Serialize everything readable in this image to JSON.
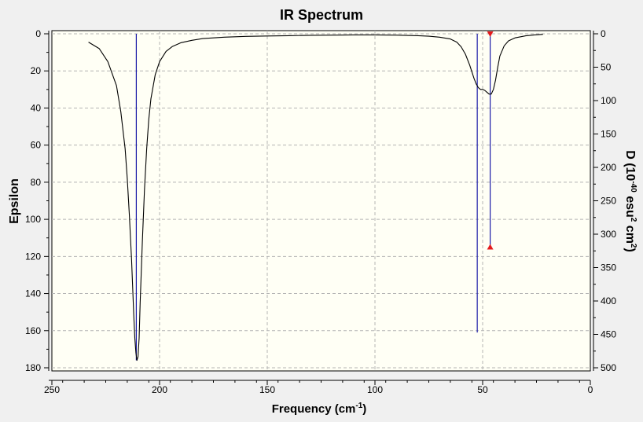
{
  "chart_data": {
    "type": "line",
    "title": "IR Spectrum",
    "xlabel": "Frequency (cm",
    "xlabel_sup": "-1",
    "xlabel_tail": ")",
    "ylabel": "Epsilon",
    "y2label": {
      "parts": [
        {
          "text": "D (10",
          "sup": false
        },
        {
          "text": "-40",
          "sup": true
        },
        {
          "text": " esu",
          "sup": false
        },
        {
          "text": "2",
          "sup": true
        },
        {
          "text": " cm",
          "sup": false
        },
        {
          "text": "2",
          "sup": true
        },
        {
          "text": ")",
          "sup": false
        }
      ]
    },
    "xlim": [
      250,
      0
    ],
    "ylim": [
      0,
      180
    ],
    "y2lim": [
      0,
      500
    ],
    "x_ticks": [
      250,
      200,
      150,
      100,
      50,
      0
    ],
    "x_tick_labels": [
      "250",
      "200",
      "150",
      "100",
      "50",
      "0"
    ],
    "y_ticks": [
      0,
      20,
      40,
      60,
      80,
      100,
      120,
      140,
      160,
      180
    ],
    "y_tick_labels": [
      "0",
      "20",
      "40",
      "60",
      "80",
      "100",
      "120",
      "140",
      "160",
      "180"
    ],
    "y2_ticks": [
      0,
      50,
      100,
      150,
      200,
      250,
      300,
      350,
      400,
      450,
      500
    ],
    "y2_tick_labels": [
      "0",
      "50",
      "100",
      "150",
      "200",
      "250",
      "300",
      "350",
      "400",
      "450",
      "500"
    ],
    "grid": true,
    "plot_background": "#fffff5",
    "spectrum_color": "#000000",
    "stick_color": "#1c1ca8",
    "marker_color": "#e41a1c",
    "spectrum": {
      "x": [
        233,
        228,
        224,
        220,
        218,
        216,
        215,
        214,
        213,
        212.5,
        212,
        211.5,
        211,
        210.5,
        210,
        209.5,
        209,
        208,
        207,
        206,
        205,
        204,
        202,
        200,
        197,
        194,
        190,
        185,
        180,
        170,
        160,
        150,
        140,
        130,
        120,
        110,
        100,
        90,
        80,
        75,
        70,
        65,
        62,
        60,
        58,
        56,
        54,
        53,
        52,
        51,
        50,
        49,
        48,
        47,
        46,
        45,
        44,
        43,
        42,
        40,
        38,
        35,
        30,
        26,
        22
      ],
      "y": [
        4.5,
        8,
        15,
        28,
        42,
        62,
        78,
        98,
        122,
        137,
        151,
        164,
        172,
        176,
        174,
        164,
        145,
        112,
        84,
        62,
        46,
        35,
        22,
        15,
        9.5,
        6.8,
        4.8,
        3.5,
        2.6,
        1.8,
        1.4,
        1.2,
        1,
        0.8,
        0.7,
        0.6,
        0.6,
        0.7,
        1,
        1.3,
        1.8,
        2.8,
        4.5,
        7,
        11,
        17,
        24,
        27,
        29,
        30,
        30,
        30.5,
        31.5,
        32.5,
        32.5,
        30,
        25,
        18,
        12,
        6.5,
        3.8,
        2.2,
        1.1,
        0.6,
        0.3
      ]
    },
    "sticks": [
      {
        "x": 210.8,
        "epsilon": 176
      },
      {
        "x": 52.5,
        "epsilon": 161
      },
      {
        "x": 46.5,
        "epsilon": 115,
        "marked": true
      }
    ]
  }
}
